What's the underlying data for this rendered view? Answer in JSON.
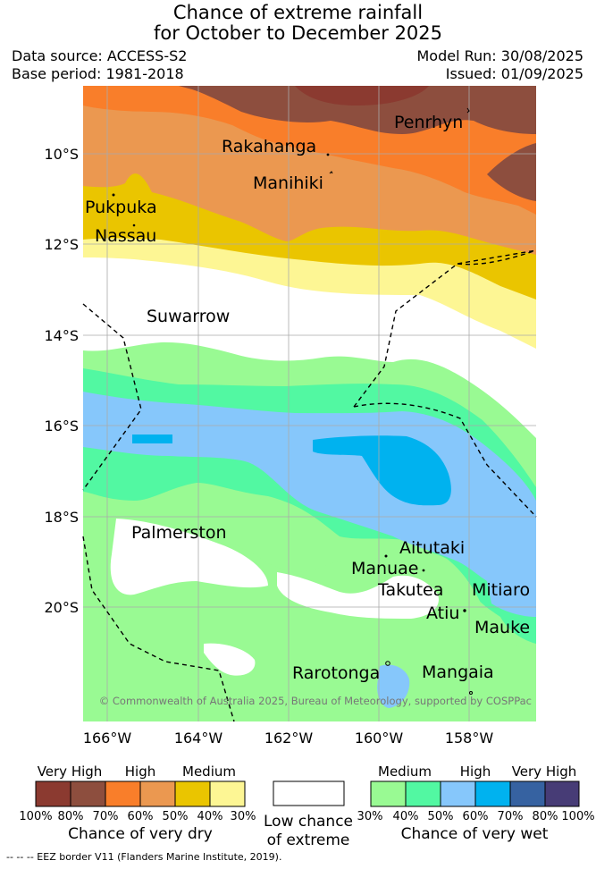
{
  "title": {
    "line1": "Chance of extreme rainfall",
    "line2": "for October to December 2025"
  },
  "meta": {
    "data_source": "Data source: ACCESS-S2",
    "base_period": "Base period: 1981-2018",
    "model_run": "Model Run: 30/08/2025",
    "issued": "Issued: 01/09/2025"
  },
  "map": {
    "lat_ticks": [
      "10°S",
      "12°S",
      "14°S",
      "16°S",
      "18°S",
      "20°S"
    ],
    "lon_ticks": [
      "166°W",
      "164°W",
      "162°W",
      "160°W",
      "158°W"
    ],
    "places": [
      "Penrhyn",
      "Rakahanga",
      "Manihiki",
      "Pukpuka",
      "Nassau",
      "Suwarrow",
      "Palmerston",
      "Aitutaki",
      "Manuae",
      "Takutea",
      "Mitiaro",
      "Atiu",
      "Mauke",
      "Rarotonga",
      "Mangaia"
    ],
    "copyright": "© Commonwealth of Australia 2025, Bureau of Meteorology, supported by COSPPac"
  },
  "legend": {
    "dry": {
      "headers": [
        "Very High",
        "High",
        "Medium"
      ],
      "ticks": [
        "100%",
        "80%",
        "70%",
        "60%",
        "50%",
        "40%",
        "30%"
      ],
      "caption": "Chance of very dry",
      "colors": [
        "#8b3a30",
        "#8d4e3e",
        "#f97e2a",
        "#eb9850",
        "#eac500",
        "#fdf694"
      ]
    },
    "neutral": {
      "caption_line1": "Low chance",
      "caption_line2": "of extreme"
    },
    "wet": {
      "headers": [
        "Medium",
        "High",
        "Very High"
      ],
      "ticks": [
        "30%",
        "40%",
        "50%",
        "60%",
        "70%",
        "80%",
        "100%"
      ],
      "caption": "Chance of very wet",
      "colors": [
        "#99fa93",
        "#52f8a2",
        "#86c7fb",
        "#00b2ef",
        "#3662a1",
        "#473c76"
      ]
    },
    "eez_note": "-- -- -- EEZ border V11 (Flanders Marine Institute, 2019)."
  }
}
